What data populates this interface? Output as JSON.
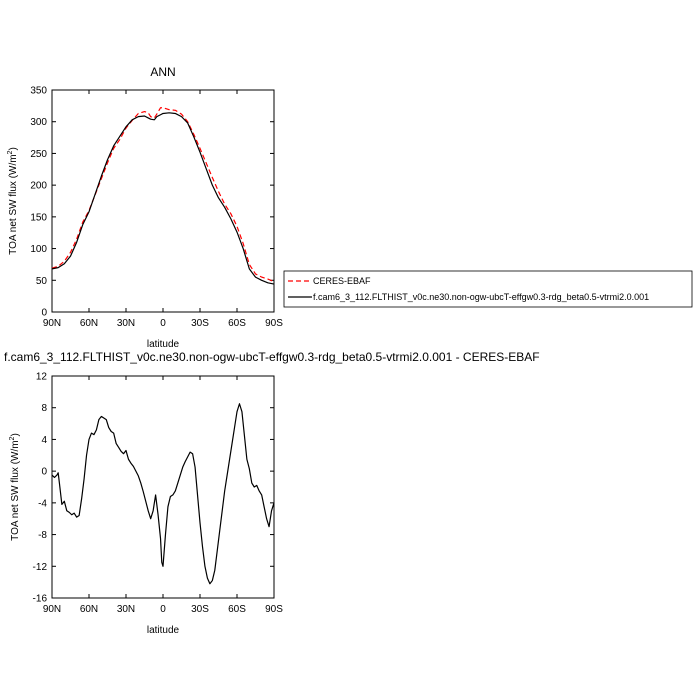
{
  "chart_data": [
    {
      "type": "line",
      "title": "ANN",
      "xlabel": "latitude",
      "ylabel": "TOA net SW flux (W/m",
      "ylabel_sup": "2",
      "ylabel_close": ")",
      "xlim": [
        90,
        -90
      ],
      "ylim": [
        0,
        350
      ],
      "xtick_values": [
        90,
        60,
        30,
        0,
        -30,
        -60,
        -90
      ],
      "xtick_labels": [
        "90N",
        "60N",
        "30N",
        "0",
        "30S",
        "60S",
        "90S"
      ],
      "ytick_values": [
        0,
        50,
        100,
        150,
        200,
        250,
        300,
        350
      ],
      "ytick_labels": [
        "0",
        "50",
        "100",
        "150",
        "200",
        "250",
        "300",
        "350"
      ],
      "legend": "right",
      "series": [
        {
          "name": "CERES-EBAF",
          "color": "#ff0000",
          "dash": true,
          "x": [
            90,
            85,
            80,
            75,
            70,
            65,
            60,
            55,
            50,
            45,
            40,
            35,
            30,
            25,
            20,
            15,
            12,
            10,
            7,
            5,
            2,
            0,
            -5,
            -10,
            -15,
            -20,
            -25,
            -30,
            -35,
            -40,
            -45,
            -50,
            -55,
            -60,
            -65,
            -70,
            -75,
            -80,
            -85,
            -90
          ],
          "y": [
            69,
            72,
            80,
            94,
            115,
            142,
            160,
            185,
            210,
            235,
            258,
            272,
            290,
            302,
            313,
            316,
            314,
            308,
            306,
            312,
            322,
            322,
            319,
            318,
            312,
            300,
            280,
            258,
            235,
            212,
            190,
            170,
            155,
            135,
            108,
            75,
            60,
            55,
            52,
            48
          ]
        },
        {
          "name": "f.cam6_3_112.FLTHIST_v0c.ne30.non-ogw-ubcT-effgw0.3-rdg_beta0.5-vtrmi2.0.001",
          "color": "#000000",
          "dash": false,
          "x": [
            90,
            85,
            80,
            75,
            70,
            65,
            60,
            55,
            50,
            45,
            40,
            35,
            30,
            25,
            20,
            15,
            12,
            10,
            7,
            5,
            2,
            0,
            -5,
            -10,
            -15,
            -20,
            -25,
            -30,
            -35,
            -40,
            -45,
            -50,
            -55,
            -60,
            -65,
            -70,
            -75,
            -80,
            -85,
            -90
          ],
          "y": [
            68,
            70,
            76,
            88,
            110,
            138,
            158,
            186,
            214,
            240,
            262,
            277,
            292,
            303,
            308,
            309,
            306,
            304,
            303,
            308,
            311,
            313,
            314,
            313,
            308,
            298,
            276,
            252,
            226,
            200,
            180,
            165,
            147,
            126,
            100,
            68,
            55,
            50,
            46,
            44
          ]
        }
      ]
    },
    {
      "type": "line",
      "title": "f.cam6_3_112.FLTHIST_v0c.ne30.non-ogw-ubcT-effgw0.3-rdg_beta0.5-vtrmi2.0.001 - CERES-EBAF",
      "xlabel": "latitude",
      "ylabel": "TOA net SW flux (W/m",
      "ylabel_sup": "2",
      "ylabel_close": ")",
      "xlim": [
        90,
        -90
      ],
      "ylim": [
        -16,
        12
      ],
      "xtick_values": [
        90,
        60,
        30,
        0,
        -30,
        -60,
        -90
      ],
      "xtick_labels": [
        "90N",
        "60N",
        "30N",
        "0",
        "30S",
        "60S",
        "90S"
      ],
      "ytick_values": [
        -16,
        -12,
        -8,
        -4,
        0,
        4,
        8,
        12
      ],
      "ytick_labels": [
        "-16",
        "-12",
        "-8",
        "-4",
        "0",
        "4",
        "8",
        "12"
      ],
      "series": [
        {
          "color": "#000000",
          "x": [
            90,
            88,
            86,
            85,
            84,
            82,
            80,
            78,
            76,
            74,
            72,
            70,
            68,
            66,
            64,
            62,
            60,
            58,
            56,
            54,
            52,
            50,
            48,
            46,
            44,
            42,
            40,
            38,
            36,
            34,
            32,
            30,
            28,
            26,
            24,
            22,
            20,
            18,
            16,
            14,
            12,
            10,
            8,
            6,
            4,
            2,
            1,
            0,
            -2,
            -4,
            -6,
            -8,
            -10,
            -12,
            -14,
            -16,
            -18,
            -20,
            -22,
            -24,
            -26,
            -28,
            -30,
            -32,
            -34,
            -36,
            -38,
            -40,
            -42,
            -44,
            -46,
            -48,
            -50,
            -52,
            -54,
            -56,
            -58,
            -60,
            -62,
            -64,
            -66,
            -68,
            -70,
            -72,
            -74,
            -76,
            -78,
            -80,
            -82,
            -84,
            -86,
            -88,
            -90
          ],
          "y": [
            -0.5,
            -0.8,
            -0.5,
            -0.2,
            -1.5,
            -4.2,
            -3.8,
            -5.0,
            -5.2,
            -5.5,
            -5.3,
            -5.8,
            -5.6,
            -3.5,
            -1.0,
            2.0,
            4.0,
            4.8,
            4.6,
            5.2,
            6.5,
            6.9,
            6.7,
            6.5,
            5.5,
            5.0,
            4.8,
            3.5,
            3.0,
            2.5,
            2.2,
            2.6,
            1.5,
            1.0,
            0.6,
            0.0,
            -0.6,
            -1.5,
            -2.6,
            -3.8,
            -5.0,
            -6.0,
            -5.0,
            -3.0,
            -5.5,
            -8.5,
            -11.5,
            -12.0,
            -8.0,
            -4.5,
            -3.2,
            -3.0,
            -2.5,
            -1.5,
            -0.5,
            0.5,
            1.2,
            1.8,
            2.4,
            2.2,
            0.5,
            -3.0,
            -6.5,
            -9.5,
            -12.0,
            -13.5,
            -14.2,
            -13.8,
            -12.5,
            -10.0,
            -7.5,
            -5.0,
            -2.5,
            -0.5,
            1.5,
            3.5,
            5.5,
            7.5,
            8.5,
            7.5,
            4.5,
            1.5,
            0.3,
            -1.5,
            -2.0,
            -1.8,
            -2.5,
            -3.0,
            -4.5,
            -6.0,
            -7.0,
            -5.0,
            -4.0
          ]
        }
      ]
    }
  ]
}
